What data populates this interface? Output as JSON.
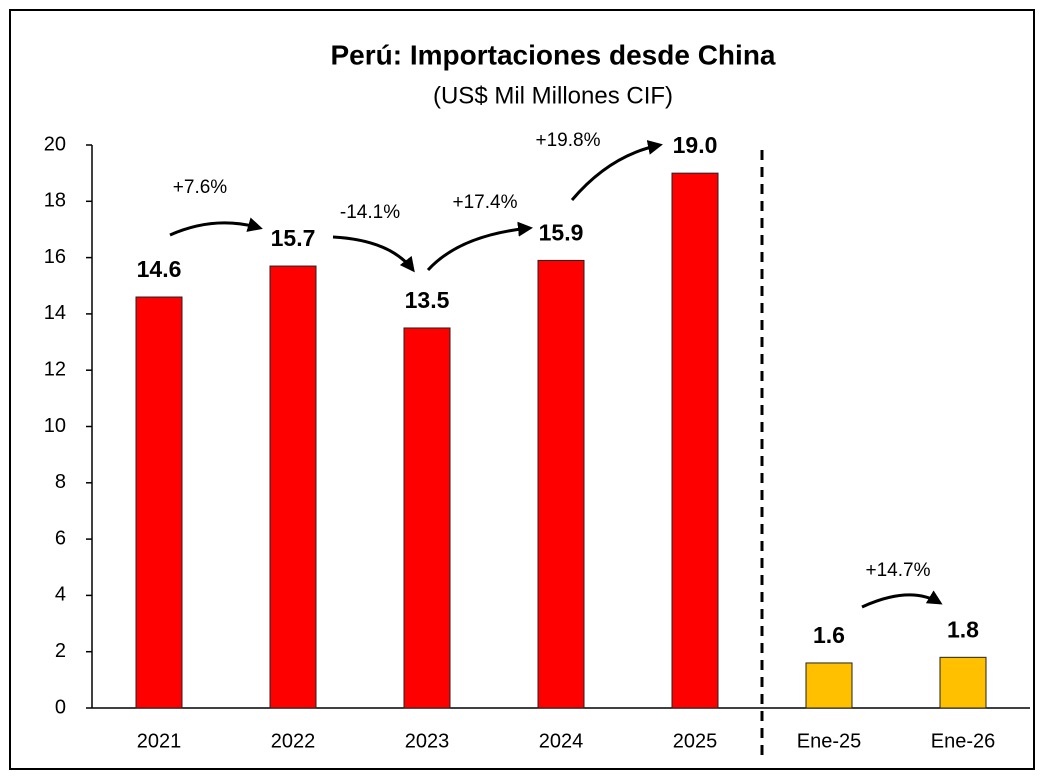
{
  "chart_data": {
    "type": "bar",
    "title": "Perú: Importaciones desde China",
    "subtitle": "(US$ Mil Millones CIF)",
    "categories": [
      "2021",
      "2022",
      "2023",
      "2024",
      "2025",
      "Ene-25",
      "Ene-26"
    ],
    "values": [
      14.6,
      15.7,
      13.5,
      15.9,
      19.0,
      1.6,
      1.8
    ],
    "value_labels": [
      "14.6",
      "15.7",
      "13.5",
      "15.9",
      "19.0",
      "1.6",
      "1.8"
    ],
    "colors": [
      "#ff0000",
      "#ff0000",
      "#ff0000",
      "#ff0000",
      "#ff0000",
      "#ffc000",
      "#ffc000"
    ],
    "ylim": [
      0,
      20
    ],
    "yticks": [
      0,
      2,
      4,
      6,
      8,
      10,
      12,
      14,
      16,
      18,
      20
    ],
    "grid": false,
    "annotations": [
      "+7.6%",
      "-14.1%",
      "+17.4%",
      "+19.8%",
      "+14.7%"
    ]
  }
}
